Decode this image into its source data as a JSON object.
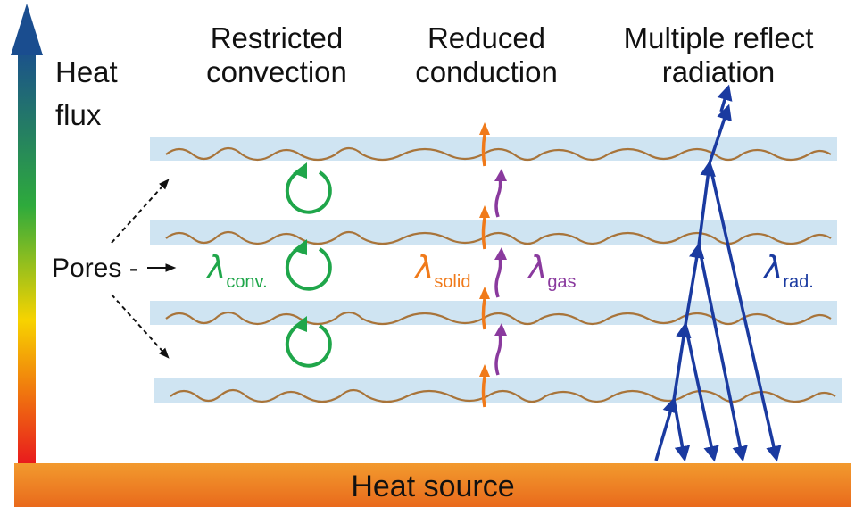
{
  "axis": {
    "label_line1": "Heat",
    "label_line2": "flux"
  },
  "headings": [
    {
      "line1": "Restricted",
      "line2": "convection"
    },
    {
      "line1": "Reduced",
      "line2": "conduction"
    },
    {
      "line1": "Multiple reflect",
      "line2": "radiation"
    }
  ],
  "pores_label": "Pores -",
  "lambdas": {
    "symbol": "λ",
    "conv": "conv.",
    "solid": "solid",
    "gas": "gas",
    "rad": "rad."
  },
  "heat_source": "Heat source",
  "colors": {
    "convection": "#1fa64a",
    "solid": "#f07a1a",
    "gas": "#8a3a9e",
    "radiation": "#1a3aa0",
    "band": "#cfe4f2",
    "fiber": "#a8743a",
    "heat_source": "#f08a2a"
  }
}
